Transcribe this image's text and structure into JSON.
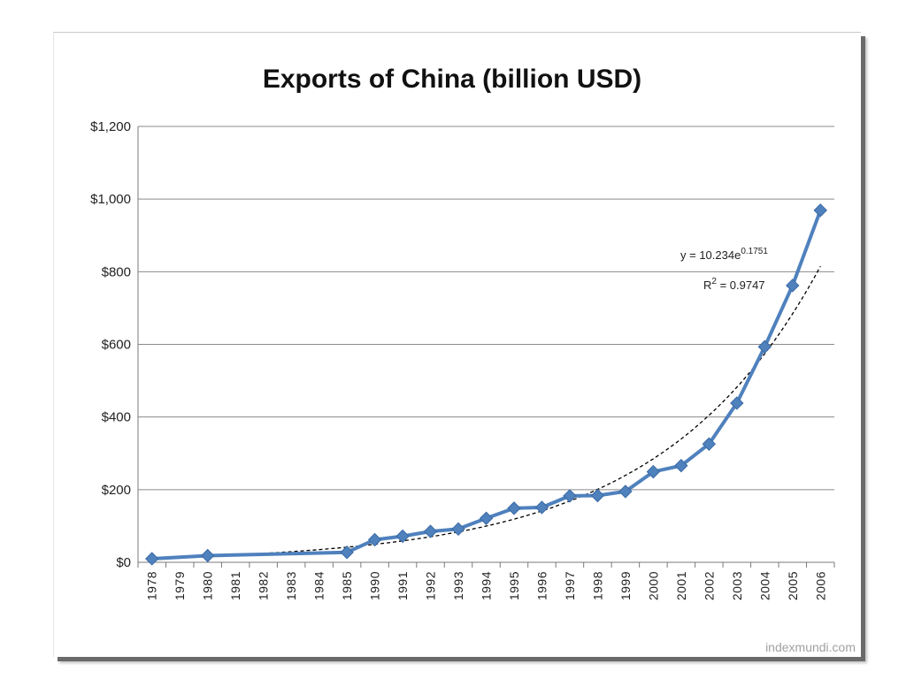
{
  "colors": {
    "series": "#4f81bd",
    "trendline": "#000000",
    "gridline": "#8a8a8a",
    "watermark": "#a0a0a0"
  },
  "chart_data": {
    "type": "line",
    "title": "Exports of China (billion USD)",
    "xlabel": "",
    "ylabel": "",
    "categories": [
      "1978",
      "1979",
      "1980",
      "1981",
      "1982",
      "1983",
      "1984",
      "1985",
      "1990",
      "1991",
      "1992",
      "1993",
      "1994",
      "1995",
      "1996",
      "1997",
      "1998",
      "1999",
      "2000",
      "2001",
      "2002",
      "2003",
      "2004",
      "2005",
      "2006"
    ],
    "y_tick_labels": [
      "$0",
      "$200",
      "$400",
      "$600",
      "$800",
      "$1,000",
      "$1,200"
    ],
    "y_ticks": [
      0,
      200,
      400,
      600,
      800,
      1000,
      1200
    ],
    "ylim": [
      0,
      1200
    ],
    "grid": true,
    "series": [
      {
        "values": [
          9.8,
          null,
          18.3,
          null,
          null,
          null,
          null,
          27.4,
          62.1,
          71.8,
          85.0,
          91.7,
          121.0,
          148.8,
          151.1,
          182.8,
          183.8,
          194.9,
          249.2,
          266.1,
          325.6,
          438.2,
          593.3,
          762.0,
          969.1
        ],
        "marker": "diamond"
      }
    ],
    "trendline": {
      "type": "exponential",
      "equation": "y = 10.234e",
      "exponent": "0.1751",
      "r_squared_label": "R",
      "r_squared_superscript": "2",
      "r_squared_value": " = 0.9747",
      "a": 10.234,
      "b": 0.1751
    }
  },
  "watermark": "indexmundi.com"
}
